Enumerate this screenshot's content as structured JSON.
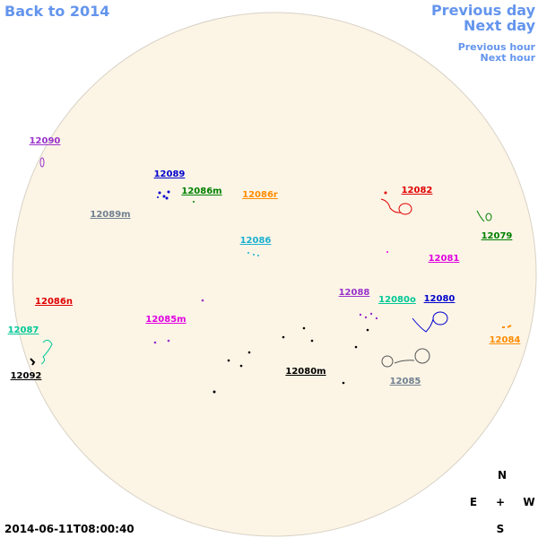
{
  "nav": {
    "back": "Back to 2014",
    "previous_day": "Previous day",
    "next_day": "Next day",
    "previous_hour": "Previous hour",
    "next_hour": "Next hour"
  },
  "regions": [
    "12090",
    "12089",
    "12086m",
    "12086r",
    "12089m",
    "12082",
    "12079",
    "12086",
    "12081",
    "12088",
    "12080o",
    "12080",
    "12086n",
    "12085m",
    "12087",
    "12084",
    "12092",
    "12080m",
    "12085"
  ],
  "compass": {
    "north": "N",
    "east": "E",
    "center": "+",
    "west": "W",
    "south": "S"
  },
  "timestamp": "2014-06-11T08:00:40"
}
